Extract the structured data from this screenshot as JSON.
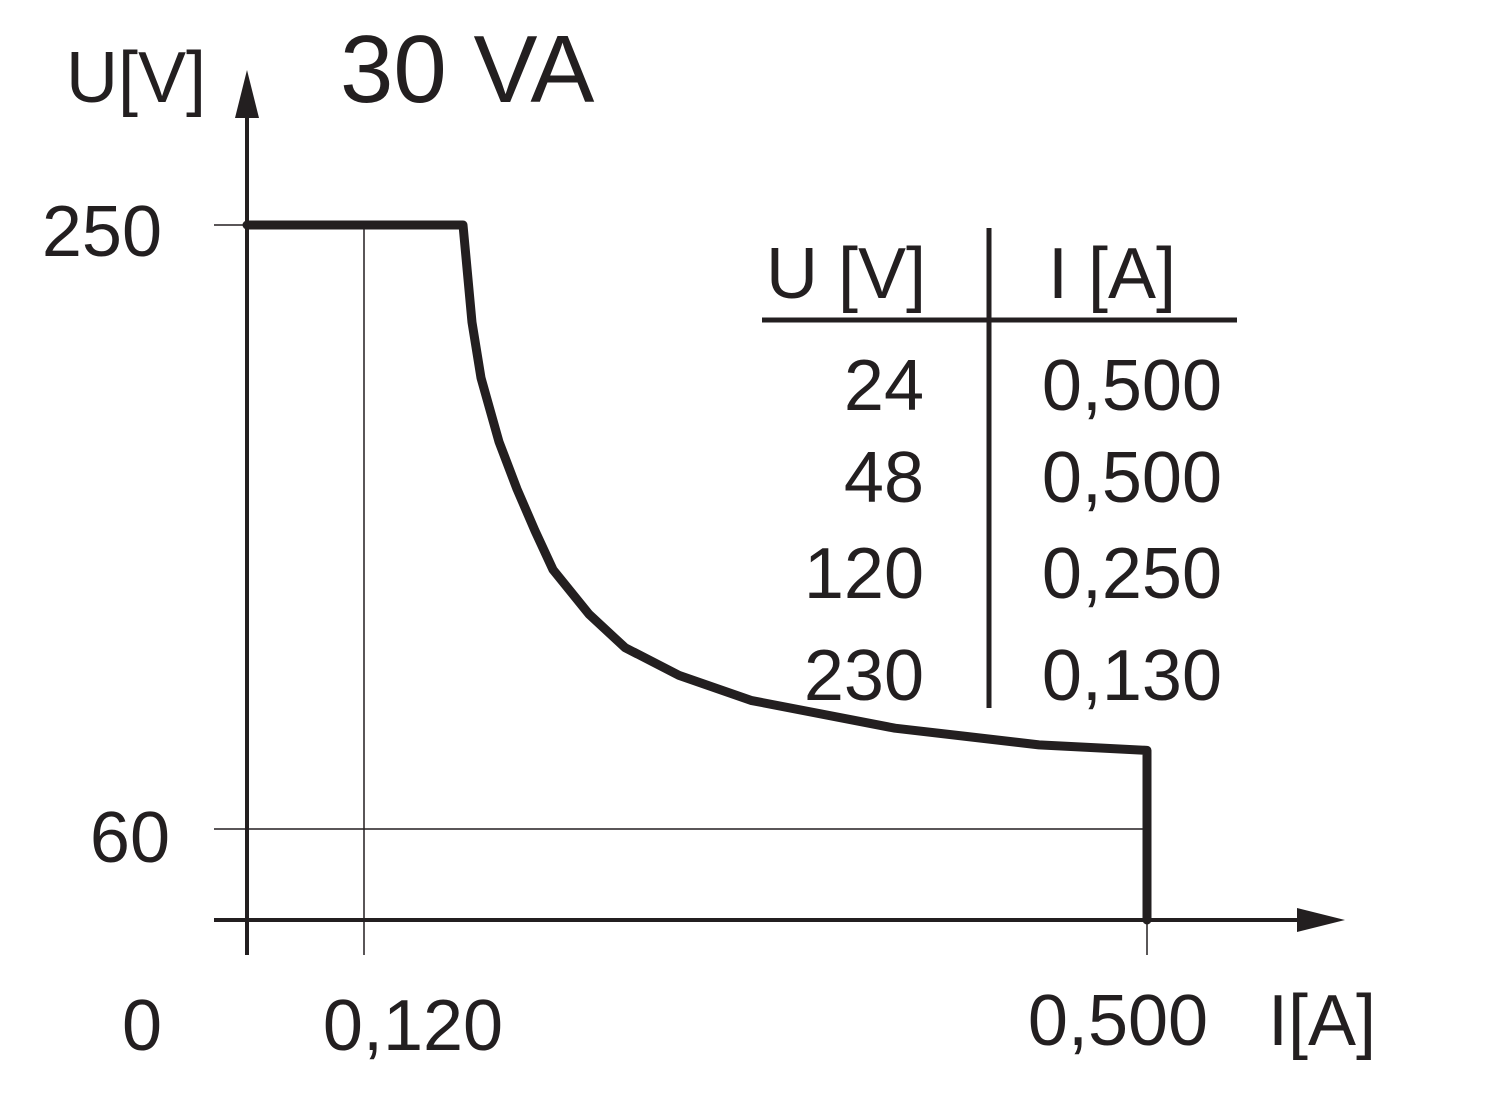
{
  "chart_data": {
    "type": "line",
    "title": "30 VA",
    "xlabel": "I[A]",
    "ylabel": "U[V]",
    "xlim": [
      0,
      0.52
    ],
    "ylim": [
      0,
      270
    ],
    "x_ticks": [
      "0",
      "0,120",
      "0,500"
    ],
    "y_ticks": [
      "250",
      "60"
    ],
    "series": [
      {
        "points": [
          [
            0,
            250
          ],
          [
            0.12,
            250
          ],
          [
            0.125,
            215
          ],
          [
            0.13,
            195
          ],
          [
            0.14,
            172
          ],
          [
            0.15,
            155
          ],
          [
            0.16,
            140
          ],
          [
            0.17,
            126
          ],
          [
            0.19,
            110
          ],
          [
            0.21,
            98
          ],
          [
            0.24,
            88
          ],
          [
            0.28,
            79
          ],
          [
            0.32,
            74
          ],
          [
            0.36,
            69
          ],
          [
            0.4,
            66
          ],
          [
            0.44,
            63
          ],
          [
            0.47,
            62
          ],
          [
            0.5,
            61
          ],
          [
            0.5,
            0
          ]
        ]
      }
    ],
    "table": {
      "headers": [
        "U [V]",
        "I [A]"
      ],
      "rows": [
        [
          "24",
          "0,500"
        ],
        [
          "48",
          "0,500"
        ],
        [
          "120",
          "0,250"
        ],
        [
          "230",
          "0,130"
        ]
      ]
    },
    "grid": false
  }
}
